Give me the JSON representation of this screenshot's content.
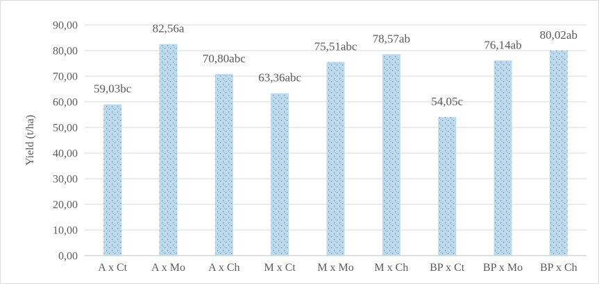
{
  "chart_data": {
    "type": "bar",
    "ylabel": "Yield (t/ha)",
    "xlabel": "",
    "title": "",
    "ylim": [
      0,
      90
    ],
    "ytick_step": 10,
    "ytick_labels": [
      "0,00",
      "10,00",
      "20,00",
      "30,00",
      "40,00",
      "50,00",
      "60,00",
      "70,00",
      "80,00",
      "90,00"
    ],
    "grid": true,
    "legend": "none",
    "categories": [
      "A x Ct",
      "A x Mo",
      "A x Ch",
      "M x Ct",
      "M x Mo",
      "M x Ch",
      "BP x Ct",
      "BP x Mo",
      "BP x Ch"
    ],
    "values": [
      59.03,
      82.56,
      70.8,
      63.36,
      75.51,
      78.57,
      54.05,
      76.14,
      80.02
    ],
    "data_labels": [
      "59,03bc",
      "82,56a",
      "70,80abc",
      "63,36abc",
      "75,51abc",
      "78,57ab",
      "54,05c",
      "76,14ab",
      "80,02ab"
    ],
    "colors": {
      "bar_fill": "#bcd9ee",
      "bar_pattern_dot": "#7a9cb8",
      "grid": "#d9d9d9",
      "axis": "#bfbfbf",
      "text": "#595959"
    }
  }
}
